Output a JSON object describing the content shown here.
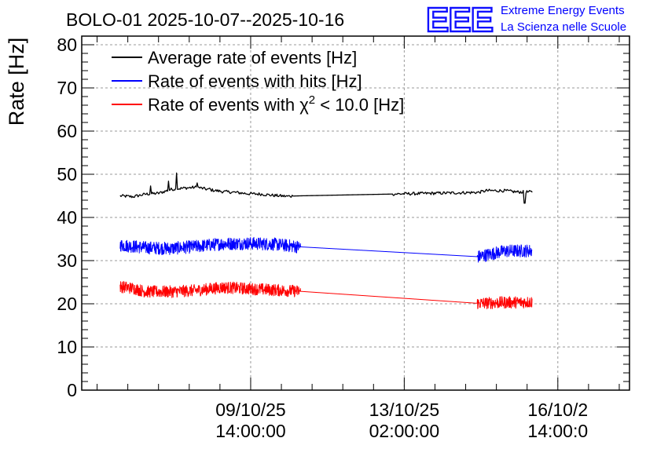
{
  "chart_data": {
    "type": "line",
    "title": "BOLO-01 2025-10-07--2025-10-16",
    "ylabel": "Rate [Hz]",
    "xlabel": "",
    "ylim": [
      0,
      82
    ],
    "y_ticks": [
      0,
      10,
      20,
      30,
      40,
      50,
      60,
      70,
      80
    ],
    "x_range_hours": [
      0,
      214
    ],
    "x_ticks": [
      {
        "hour": 66,
        "date": "09/10/25",
        "time": "14:00:00"
      },
      {
        "hour": 126,
        "date": "13/10/25",
        "time": "02:00:00"
      },
      {
        "hour": 186,
        "date": "16/10/2",
        "time": "14:00:0"
      }
    ],
    "grid": true,
    "legend_position": "top-left",
    "logo": {
      "mark": "EEE",
      "line1": "Extreme Energy Events",
      "line2": "La Scienza nelle Scuole"
    },
    "series": [
      {
        "name": "Average rate of events [Hz]",
        "color": "#000000",
        "legend_label": "Average rate of events [Hz]",
        "noise": 0.35,
        "points": [
          [
            15,
            45.0
          ],
          [
            20,
            44.8
          ],
          [
            25,
            45.4
          ],
          [
            30,
            45.6
          ],
          [
            35,
            46.5
          ],
          [
            40,
            46.8
          ],
          [
            45,
            47.0
          ],
          [
            50,
            46.4
          ],
          [
            55,
            46.0
          ],
          [
            60,
            45.8
          ],
          [
            65,
            45.5
          ],
          [
            70,
            45.4
          ],
          [
            75,
            45.1
          ],
          [
            80,
            44.9
          ],
          [
            85,
            45.0
          ],
          [
            120,
            45.4
          ],
          [
            155,
            45.8
          ],
          [
            158,
            46.2
          ],
          [
            165,
            46.2
          ],
          [
            170,
            45.9
          ],
          [
            176,
            45.9
          ]
        ],
        "spikes": [
          [
            27,
            47.3
          ],
          [
            34,
            48.4
          ],
          [
            37,
            50.3
          ],
          [
            45,
            48.0
          ],
          [
            50,
            46.8
          ],
          [
            173,
            43.3
          ]
        ]
      },
      {
        "name": "Rate of events with hits [Hz]",
        "color": "#0000ff",
        "legend_label": "Rate of events with hits [Hz]",
        "noise": 1.5,
        "points": [
          [
            15,
            33.6
          ],
          [
            25,
            33.0
          ],
          [
            35,
            32.8
          ],
          [
            45,
            33.3
          ],
          [
            55,
            33.9
          ],
          [
            65,
            34.0
          ],
          [
            75,
            33.8
          ],
          [
            85,
            33.2
          ],
          [
            155,
            30.9
          ],
          [
            165,
            32.2
          ],
          [
            176,
            32.3
          ]
        ],
        "gap": [
          85,
          155
        ]
      },
      {
        "name": "Rate of events with chi2 < 10.0 [Hz]",
        "color": "#ff0000",
        "legend_label": "Rate of events with χ² < 10.0 [Hz]",
        "legend_prefix": "Rate of events with ",
        "legend_symbol": "χ",
        "legend_sup": "2",
        "legend_suffix": " < 10.0 [Hz]",
        "noise": 1.4,
        "points": [
          [
            15,
            24.0
          ],
          [
            20,
            23.6
          ],
          [
            25,
            22.8
          ],
          [
            35,
            22.8
          ],
          [
            45,
            23.1
          ],
          [
            55,
            23.8
          ],
          [
            65,
            23.5
          ],
          [
            75,
            23.2
          ],
          [
            85,
            22.9
          ],
          [
            155,
            20.1
          ],
          [
            165,
            20.3
          ],
          [
            176,
            20.4
          ]
        ],
        "gap": [
          85,
          155
        ]
      }
    ]
  }
}
